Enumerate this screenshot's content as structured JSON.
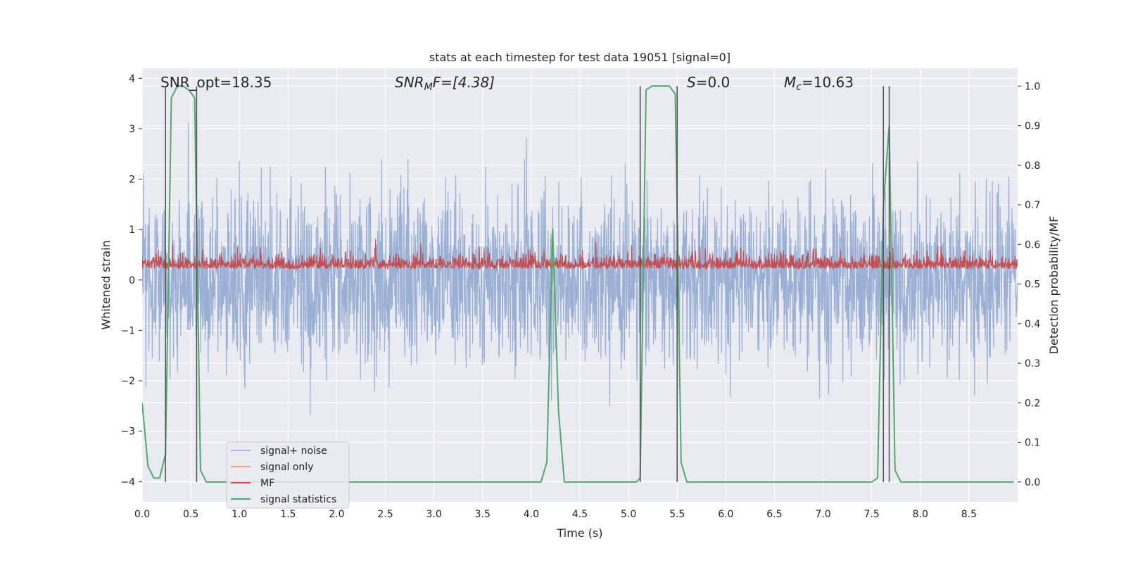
{
  "chart_data": {
    "type": "line",
    "title": "stats at each timestep for test data 19051 [signal=0]",
    "xlabel": "Time (s)",
    "ylabel": "Whitened strain",
    "ylabel_right": "Detection probability/MF",
    "xlim": [
      0,
      9.0
    ],
    "ylim": [
      -4.4,
      4.2
    ],
    "ylim_right": [
      -0.05,
      1.045
    ],
    "x_ticks": [
      0.0,
      0.5,
      1.0,
      1.5,
      2.0,
      2.5,
      3.0,
      3.5,
      4.0,
      4.5,
      5.0,
      5.5,
      6.0,
      6.5,
      7.0,
      7.5,
      8.0,
      8.5
    ],
    "x_tick_labels": [
      "0.0",
      "0.5",
      "1.0",
      "1.5",
      "2.0",
      "2.5",
      "3.0",
      "3.5",
      "4.0",
      "4.5",
      "5.0",
      "5.5",
      "6.0",
      "6.5",
      "7.0",
      "7.5",
      "8.0",
      "8.5"
    ],
    "y_ticks": [
      -4,
      -3,
      -2,
      -1,
      0,
      1,
      2,
      3,
      4
    ],
    "y_tick_labels": [
      "−4",
      "−3",
      "−2",
      "−1",
      "0",
      "1",
      "2",
      "3",
      "4"
    ],
    "y_ticks_right": [
      0.0,
      0.1,
      0.2,
      0.3,
      0.4,
      0.5,
      0.6,
      0.7,
      0.8,
      0.9,
      1.0
    ],
    "y_tick_labels_right": [
      "0.0",
      "0.1",
      "0.2",
      "0.3",
      "0.4",
      "0.5",
      "0.6",
      "0.7",
      "0.8",
      "0.9",
      "1.0"
    ],
    "grid": true,
    "legend_position": "bottom-left",
    "annotations": {
      "snr_opt": "SNR_opt=18.35",
      "snr_mf_sym": "SNR",
      "snr_mf_sub": "M",
      "snr_mf_tail": "F=[4.38]",
      "s_sym": "S",
      "s_tail": "=0.0",
      "mc_sym": "M",
      "mc_sub": "c",
      "mc_tail": "=10.63"
    },
    "series": [
      {
        "name": "signal+ noise",
        "color": "#7f9bc9",
        "noise_std": 0.85,
        "noise_min": -4.0,
        "noise_max": 3.85
      },
      {
        "name": "signal only",
        "color": "#e8a07f",
        "values": []
      },
      {
        "name": "MF",
        "color": "#c44e52",
        "mean": 0.28,
        "noise_min": 0.05,
        "noise_max": 0.97
      },
      {
        "name": "signal statistics",
        "color": "#55a868",
        "axis": "right",
        "x": [
          0.0,
          0.06,
          0.12,
          0.18,
          0.24,
          0.3,
          0.36,
          0.42,
          0.48,
          0.54,
          0.6,
          0.66,
          0.72,
          4.1,
          4.16,
          4.22,
          4.28,
          4.34,
          4.4,
          5.08,
          5.12,
          5.18,
          5.24,
          5.3,
          5.36,
          5.42,
          5.48,
          5.54,
          5.6,
          7.5,
          7.56,
          7.62,
          7.68,
          7.74,
          7.8,
          8.96
        ],
        "y": [
          0.2,
          0.04,
          0.01,
          0.01,
          0.07,
          0.97,
          1.0,
          1.0,
          0.99,
          0.97,
          0.03,
          0.0,
          0.0,
          0.0,
          0.05,
          0.64,
          0.18,
          0.0,
          0.0,
          0.0,
          0.01,
          0.99,
          1.0,
          1.0,
          1.0,
          1.0,
          0.98,
          0.05,
          0.0,
          0.0,
          0.01,
          0.7,
          0.9,
          0.03,
          0.0,
          0.0
        ]
      }
    ],
    "vlines_x": [
      0.24,
      0.56,
      5.12,
      5.5,
      7.62,
      7.68
    ],
    "vlines_color": "#555555"
  }
}
